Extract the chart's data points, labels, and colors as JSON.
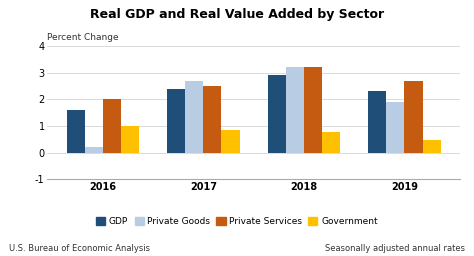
{
  "title": "Real GDP and Real Value Added by Sector",
  "ylabel": "Percent Change",
  "years": [
    "2016",
    "2017",
    "2018",
    "2019"
  ],
  "series": {
    "GDP": [
      1.6,
      2.4,
      2.9,
      2.3
    ],
    "Private Goods": [
      0.2,
      2.7,
      3.2,
      1.9
    ],
    "Private Services": [
      2.0,
      2.5,
      3.2,
      2.7
    ],
    "Government": [
      1.0,
      0.85,
      0.78,
      0.48
    ]
  },
  "colors": {
    "GDP": "#1f4e79",
    "Private Goods": "#b8cce4",
    "Private Services": "#c55a11",
    "Government": "#ffc000"
  },
  "ylim": [
    -1,
    4
  ],
  "yticks": [
    -1,
    0,
    1,
    2,
    3,
    4
  ],
  "bar_width": 0.18,
  "footer_left": "U.S. Bureau of Economic Analysis",
  "footer_right": "Seasonally adjusted annual rates",
  "background_color": "#ffffff"
}
